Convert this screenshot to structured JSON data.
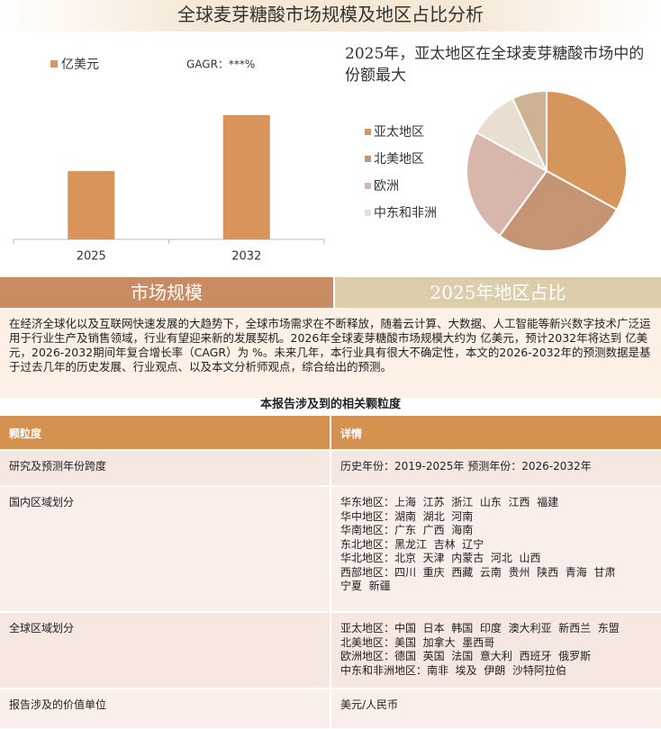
{
  "header": {
    "title": "全球麦芽糖酸市场规模及地区占比分析"
  },
  "chart_data": [
    {
      "type": "bar",
      "categories": [
        "2025",
        "2032"
      ],
      "series": [
        {
          "name": "亿美元",
          "color": "#d9945b",
          "values": [
            55,
            100
          ]
        }
      ],
      "annotation": "GAGR：***%"
    },
    {
      "type": "pie",
      "title": "2025年，亚太地区在全球麦芽糖酸市场中的份额最大",
      "categories": [
        "亚太地区",
        "北美地区",
        "欧洲",
        "中东和非洲",
        null
      ],
      "values": [
        33,
        27,
        23,
        10,
        7
      ],
      "colors": [
        "#d6955b",
        "#c49473",
        "#d7b7ab",
        "#e9dfd1",
        "#cdb293"
      ]
    }
  ],
  "tabs": [
    "市场规模",
    "2025年地区占比"
  ],
  "paragraph": "在经济全球化以及互联网快速发展的大趋势下，全球市场需求在不断释放，随着云计算、大数据、人工智能等新兴数字技术广泛运用于行业生产及销售领域，行业有望迎来新的发展契机。2026年全球麦芽糖酸市场规模大约为 亿美元，预计2032年将达到 亿美元，2026-2032期间年复合增长率（CAGR）为 %。未来几年，本行业具有很大不确定性，本文的2026-2032年的预测数据是基于过去几年的历史发展、行业观点、以及本文分析师观点，综合给出的预测。",
  "table": {
    "title": "本报告涉及到的相关颗粒度",
    "columns": [
      "颗粒度",
      "详情"
    ],
    "rows": [
      {
        "label": "研究及预测年份跨度",
        "details": [
          "历史年份：2019-2025年 预测年份：2026-2032年"
        ]
      },
      {
        "label": "国内区域划分",
        "details": [
          "华东地区：上海  江苏  浙江  山东  江西  福建",
          "华中地区：湖南  湖北  河南",
          "华南地区：广东  广西  海南",
          "东北地区：黑龙江  吉林  辽宁",
          "华北地区：北京  天津  内蒙古  河北  山西",
          "西部地区：四川  重庆  西藏  云南  贵州  陕西  青海  甘肃",
          "宁夏  新疆"
        ]
      },
      {
        "label": "全球区域划分",
        "details": [
          "亚太地区：中国  日本  韩国  印度  澳大利亚  新西兰  东盟",
          "北美地区：美国  加拿大  墨西哥",
          "欧洲地区：德国  英国  法国  意大利  西班牙  俄罗斯",
          "中东和非洲地区：南非  埃及  伊朗  沙特阿拉伯"
        ]
      },
      {
        "label": "报告涉及的价值单位",
        "details": [
          "美元/人民币"
        ]
      }
    ]
  }
}
